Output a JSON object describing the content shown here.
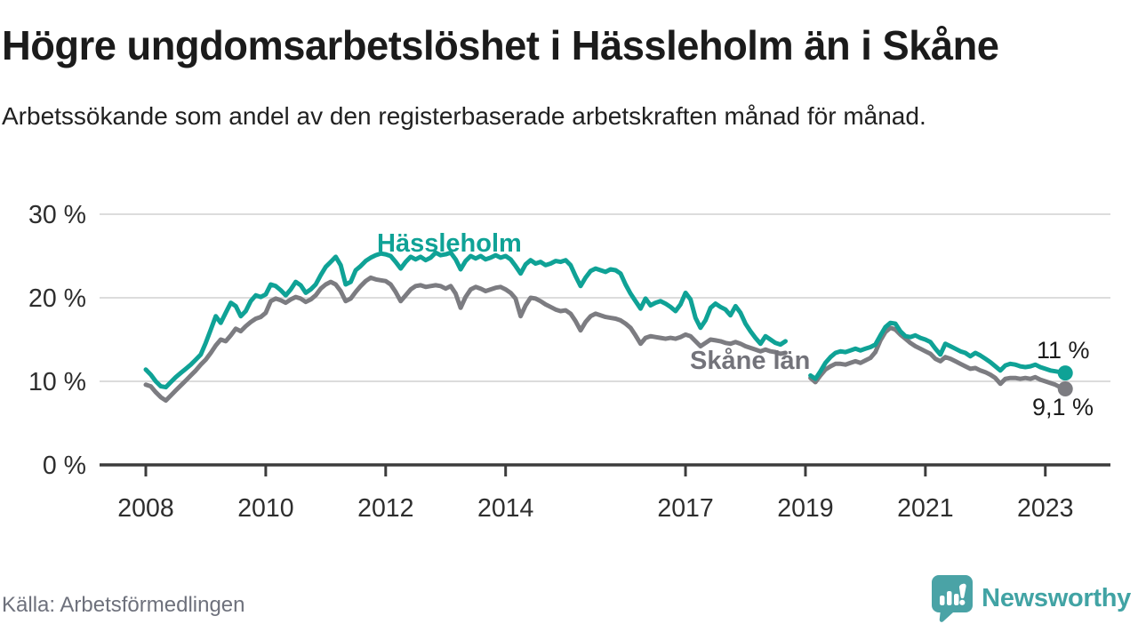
{
  "header": {
    "title": "Högre ungdomsarbetslöshet i Hässleholm än i Skåne",
    "subtitle": "Arbetssökande som andel av den registerbaserade arbetskraften månad för månad."
  },
  "chart_data": {
    "type": "line",
    "title": "Högre ungdomsarbetslöshet i Hässleholm än i Skåne",
    "unit": "%",
    "grid": true,
    "y_axis": {
      "tick_values": [
        0,
        10,
        20,
        30
      ],
      "tick_labels": [
        "0 %",
        "10 %",
        "20 %",
        "30 %"
      ],
      "range": [
        0,
        30
      ]
    },
    "x_axis": {
      "tick_years": [
        2008,
        2010,
        2012,
        2014,
        2017,
        2019,
        2021,
        2023
      ],
      "range_start": "2008-01",
      "range_end": "2023-05",
      "note_gap": "no data between 2018-09 and 2019-02"
    },
    "series": [
      {
        "name": "Hässleholm",
        "color": "#0FA296",
        "end_label": "11 %",
        "end_value": 11,
        "segments": [
          {
            "start_month": "2008-01",
            "values": [
              11.4,
              10.8,
              10.0,
              9.4,
              9.3,
              9.9,
              10.5,
              11.0,
              11.5,
              12.0,
              12.6,
              13.2,
              14.6,
              16.2,
              17.8,
              17.0,
              18.2,
              19.4,
              19.0,
              17.8,
              18.4,
              19.6,
              20.3,
              20.1,
              20.4,
              21.6,
              21.4,
              20.9,
              20.3,
              21.0,
              21.9,
              21.5,
              20.6,
              21.0,
              21.6,
              22.7,
              23.7,
              24.3,
              24.9,
              23.9,
              21.6,
              21.9,
              23.3,
              23.8,
              24.4,
              24.8,
              25.1,
              25.3,
              25.2,
              25.0,
              24.3,
              23.5,
              24.3,
              24.9,
              24.6,
              24.9,
              24.5,
              24.8,
              25.4,
              25.1,
              25.2,
              25.4,
              24.6,
              23.4,
              24.4,
              25.0,
              24.7,
              25.0,
              24.6,
              24.8,
              25.1,
              24.8,
              25.0,
              24.6,
              23.8,
              22.9,
              24.0,
              24.5,
              24.1,
              24.3,
              23.9,
              24.1,
              24.4,
              24.3,
              24.5,
              23.9,
              22.6,
              21.4,
              22.4,
              23.2,
              23.5,
              23.3,
              23.1,
              23.4,
              23.3,
              22.9,
              21.6,
              20.5,
              19.6,
              18.7,
              19.9,
              19.1,
              19.4,
              19.6,
              19.3,
              18.9,
              18.4,
              19.2,
              20.6,
              19.8,
              17.6,
              16.4,
              17.3,
              18.8,
              19.3,
              18.9,
              18.6,
              17.9,
              19.0,
              18.2,
              16.9,
              16.0,
              15.2,
              14.5,
              15.4,
              15.0,
              14.6,
              14.4,
              14.8
            ]
          },
          {
            "start_month": "2019-02",
            "values": [
              10.7,
              10.3,
              11.2,
              12.2,
              12.9,
              13.4,
              13.6,
              13.5,
              13.7,
              13.9,
              13.7,
              13.9,
              14.1,
              14.4,
              15.5,
              16.5,
              17.0,
              16.9,
              16.0,
              15.4,
              15.3,
              15.5,
              15.2,
              15.0,
              14.7,
              13.9,
              13.2,
              14.5,
              14.2,
              13.9,
              13.6,
              13.4,
              13.0,
              13.4,
              13.1,
              12.7,
              12.3,
              11.8,
              11.3,
              11.9,
              12.1,
              12.0,
              11.8,
              11.7,
              11.8,
              12.0,
              11.7,
              11.5,
              11.3,
              11.2,
              11.1,
              11.0
            ]
          }
        ]
      },
      {
        "name": "Skåne län",
        "color": "#7c7c81",
        "end_label": "9,1 %",
        "end_value": 9.1,
        "segments": [
          {
            "start_month": "2008-01",
            "values": [
              9.6,
              9.4,
              8.7,
              8.1,
              7.7,
              8.3,
              8.9,
              9.5,
              10.1,
              10.7,
              11.3,
              12.0,
              12.6,
              13.4,
              14.3,
              15.0,
              14.8,
              15.5,
              16.3,
              16.0,
              16.6,
              17.1,
              17.5,
              17.7,
              18.2,
              19.6,
              19.9,
              19.7,
              19.4,
              19.8,
              20.1,
              19.9,
              19.5,
              19.8,
              20.3,
              21.1,
              21.6,
              21.9,
              21.6,
              20.8,
              19.6,
              19.9,
              20.7,
              21.4,
              22.0,
              22.4,
              22.2,
              22.1,
              22.0,
              21.6,
              20.7,
              19.6,
              20.3,
              21.0,
              21.4,
              21.5,
              21.3,
              21.4,
              21.5,
              21.4,
              21.1,
              21.4,
              20.5,
              18.8,
              20.1,
              21.0,
              21.3,
              21.1,
              20.8,
              21.0,
              21.2,
              21.3,
              21.0,
              20.6,
              19.9,
              17.8,
              19.1,
              20.0,
              19.9,
              19.6,
              19.2,
              18.9,
              18.6,
              18.4,
              18.5,
              18.1,
              17.2,
              16.1,
              17.1,
              17.8,
              18.1,
              17.9,
              17.7,
              17.6,
              17.5,
              17.3,
              16.9,
              16.4,
              15.5,
              14.5,
              15.2,
              15.4,
              15.3,
              15.2,
              15.1,
              15.2,
              15.1,
              15.3,
              15.6,
              15.4,
              14.8,
              14.2,
              14.6,
              15.0,
              14.9,
              14.8,
              14.6,
              14.5,
              14.7,
              14.5,
              14.2,
              14.0,
              13.8,
              13.6,
              13.8,
              13.6,
              13.5,
              13.3,
              13.4
            ]
          },
          {
            "start_month": "2019-02",
            "values": [
              10.4,
              9.9,
              10.7,
              11.4,
              11.8,
              12.1,
              12.1,
              12.0,
              12.2,
              12.4,
              12.2,
              12.5,
              12.8,
              13.5,
              14.9,
              15.9,
              16.4,
              16.2,
              15.6,
              15.1,
              14.6,
              14.2,
              13.9,
              13.6,
              13.3,
              12.7,
              12.4,
              12.9,
              12.7,
              12.4,
              12.1,
              11.8,
              11.5,
              11.6,
              11.3,
              11.1,
              10.8,
              10.4,
              9.7,
              10.3,
              10.4,
              10.4,
              10.3,
              10.4,
              10.3,
              10.5,
              10.2,
              10.0,
              9.8,
              9.6,
              9.3,
              9.1
            ]
          }
        ]
      }
    ],
    "annotations": {
      "series_label_1": "Hässleholm",
      "series_label_2": "Skåne län",
      "end_label_1": "11 %",
      "end_label_2": "9,1 %"
    }
  },
  "footer": {
    "source": "Källa: Arbetsförmedlingen",
    "brand_name": "Newsworthy"
  },
  "colors": {
    "hassleholm": "#0FA296",
    "skane": "#7c7c81",
    "axis": "#3c3c3c",
    "gridline": "#dcdcdc",
    "brand_teal": "#41a3a4"
  }
}
